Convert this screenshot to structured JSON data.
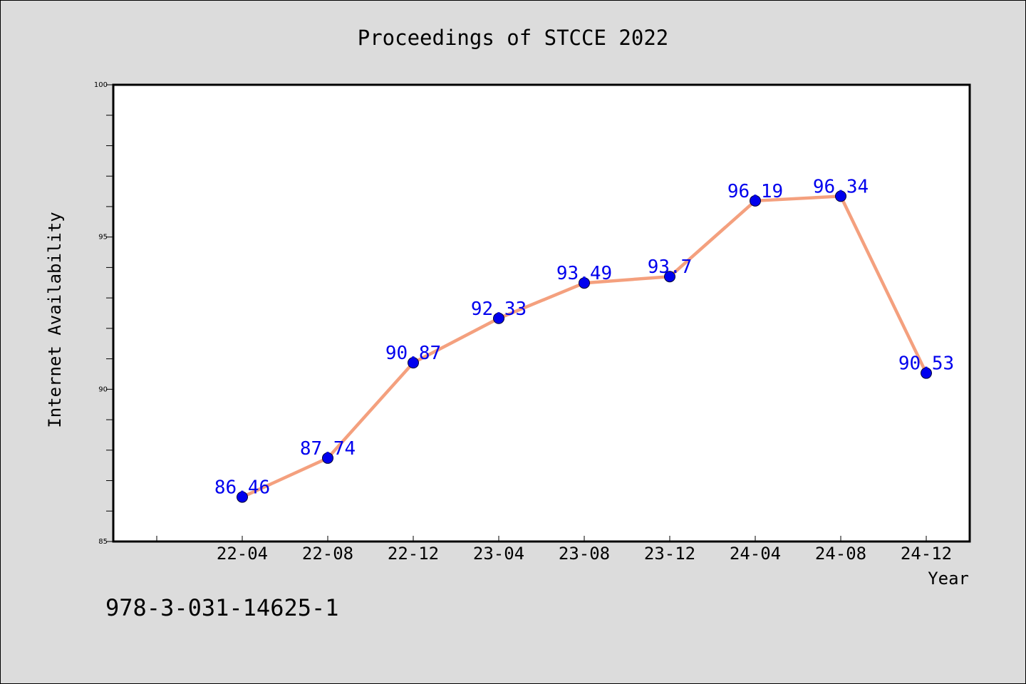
{
  "chart_data": {
    "type": "line",
    "title": "Proceedings of STCCE 2022",
    "xlabel": "Year",
    "ylabel": "Internet Availability",
    "categories": [
      "22-04",
      "22-08",
      "22-12",
      "23-04",
      "23-08",
      "23-12",
      "24-04",
      "24-08",
      "24-12"
    ],
    "values": [
      86.46,
      87.74,
      90.87,
      92.33,
      93.49,
      93.7,
      96.19,
      96.34,
      90.53
    ],
    "data_labels": [
      "86.46",
      "87.74",
      "90.87",
      "92.33",
      "93.49",
      "93.7",
      "96.19",
      "96.34",
      "90.53"
    ],
    "ylim": [
      85,
      100
    ],
    "yticks": [
      "85",
      "90",
      "95",
      "100"
    ],
    "grid": false,
    "line_color": "#f4a07e",
    "marker_color": "#0000ee",
    "label_color": "#0000ee"
  },
  "footer": {
    "isbn": "978-3-031-14625-1"
  }
}
